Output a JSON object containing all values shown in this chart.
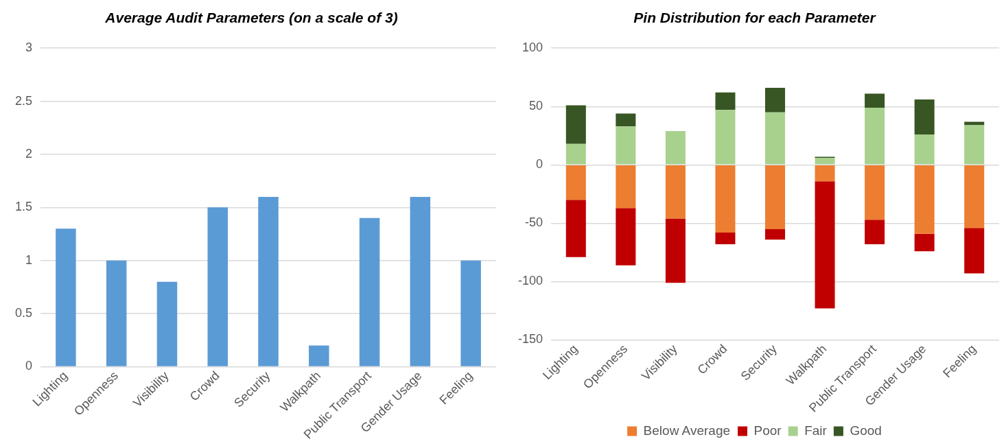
{
  "chart_data": [
    {
      "type": "bar",
      "title": "Average Audit Parameters (on a scale of 3)",
      "categories": [
        "Lighting",
        "Openness",
        "Visibility",
        "Crowd",
        "Security",
        "Walkpath",
        "Public Transport",
        "Gender Usage",
        "Feeling"
      ],
      "values": [
        1.3,
        1.0,
        0.8,
        1.5,
        1.6,
        0.2,
        1.4,
        1.6,
        1.0
      ],
      "color": "#5b9bd5",
      "ylim": [
        0,
        3
      ],
      "yticks": [
        0,
        0.5,
        1,
        1.5,
        2,
        2.5,
        3
      ],
      "grid": "y",
      "legend": false
    },
    {
      "type": "bar",
      "title": "Pin Distribution for each Parameter",
      "categories": [
        "Lighting",
        "Openness",
        "Visibility",
        "Crowd",
        "Security",
        "Walkpath",
        "Public Transport",
        "Gender Usage",
        "Feeling"
      ],
      "series": [
        {
          "name": "Below Average",
          "color": "#ed7d31",
          "values": [
            -30,
            -37,
            -46,
            -58,
            -55,
            -14,
            -47,
            -59,
            -54
          ]
        },
        {
          "name": "Poor",
          "color": "#c00000",
          "values": [
            -49,
            -49,
            -55,
            -10,
            -9,
            -109,
            -21,
            -15,
            -39
          ]
        },
        {
          "name": "Fair",
          "color": "#a9d18e",
          "values": [
            18,
            33,
            29,
            47,
            45,
            6,
            49,
            26,
            34
          ]
        },
        {
          "name": "Good",
          "color": "#375623",
          "values": [
            33,
            11,
            0,
            15,
            21,
            1,
            12,
            30,
            3
          ]
        }
      ],
      "stacked": true,
      "ylim": [
        -150,
        100
      ],
      "yticks": [
        -150,
        -100,
        -50,
        0,
        50,
        100
      ],
      "grid": "y",
      "legend": "bottom"
    }
  ]
}
